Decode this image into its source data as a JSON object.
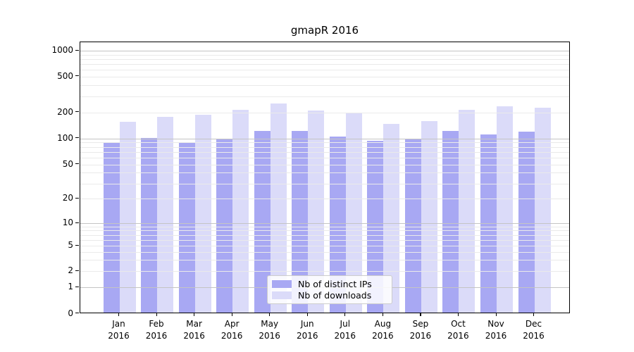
{
  "header": {
    "title": "gmapR 2016"
  },
  "chart_data": {
    "type": "bar",
    "title": "gmapR 2016",
    "categories": [
      "Jan",
      "Feb",
      "Mar",
      "Apr",
      "May",
      "Jun",
      "Jul",
      "Aug",
      "Sep",
      "Oct",
      "Nov",
      "Dec"
    ],
    "category_year": "2016",
    "series": [
      {
        "name": "Nb of distinct IPs",
        "color": "#a8a8f3",
        "values": [
          90,
          100,
          90,
          96,
          121,
          121,
          105,
          94,
          98,
          122,
          110,
          118
        ]
      },
      {
        "name": "Nb of downloads",
        "color": "#dbdbf9",
        "values": [
          154,
          177,
          187,
          211,
          247,
          208,
          193,
          145,
          158,
          211,
          233,
          223
        ]
      }
    ],
    "y_axis": {
      "tick_labels": [
        "0",
        "1",
        "2",
        "5",
        "10",
        "20",
        "50",
        "100",
        "200",
        "500",
        "1000"
      ],
      "scale": "log-with-zero",
      "top_value": 1000
    },
    "grid": "on",
    "legend_position": "lower-center-inside"
  },
  "legend": {
    "items": [
      {
        "label": "Nb of distinct IPs",
        "swatch_color": "#a8a8f3"
      },
      {
        "label": "Nb of downloads",
        "swatch_color": "#dbdbf9"
      }
    ]
  },
  "colors": {
    "bar_distinct_ips": "#a8a8f3",
    "bar_downloads": "#dbdbf9",
    "grid_minor": "#eaeaea",
    "grid_major": "#c4c4c4",
    "spine": "#000000",
    "background": "#ffffff"
  }
}
